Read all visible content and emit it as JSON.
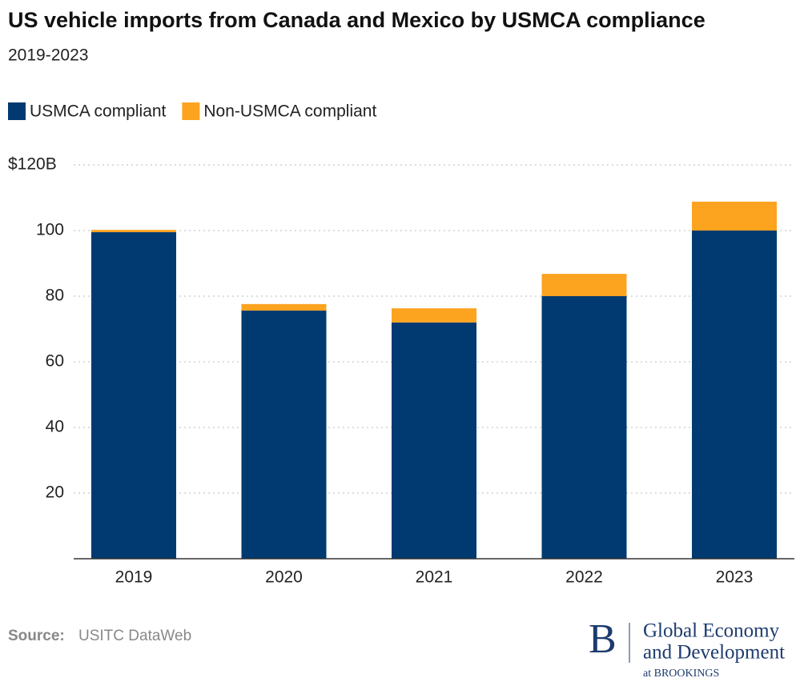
{
  "chart_data": {
    "type": "stacked_bar",
    "title": "US vehicle imports from Canada and Mexico by USMCA compliance",
    "subtitle": "2019-2023",
    "categories": [
      "2019",
      "2020",
      "2021",
      "2022",
      "2023"
    ],
    "series": [
      {
        "name": "USMCA compliant",
        "color": "#003a70",
        "values": [
          99.5,
          75.6,
          72.0,
          80.0,
          100.0
        ]
      },
      {
        "name": "Non-USMCA compliant",
        "color": "#fca320",
        "values": [
          0.7,
          2.0,
          4.3,
          6.8,
          8.8
        ]
      }
    ],
    "ylim": [
      0,
      120
    ],
    "yticks": [
      20,
      40,
      60,
      80,
      100,
      {
        "value": 120,
        "label": "$120B"
      }
    ],
    "grid": true,
    "source_label": "Source:",
    "source": "USITC DataWeb"
  },
  "logo": {
    "letter": "B",
    "line1": "Global Economy",
    "line2": "and Development",
    "line3": "at BROOKINGS"
  }
}
